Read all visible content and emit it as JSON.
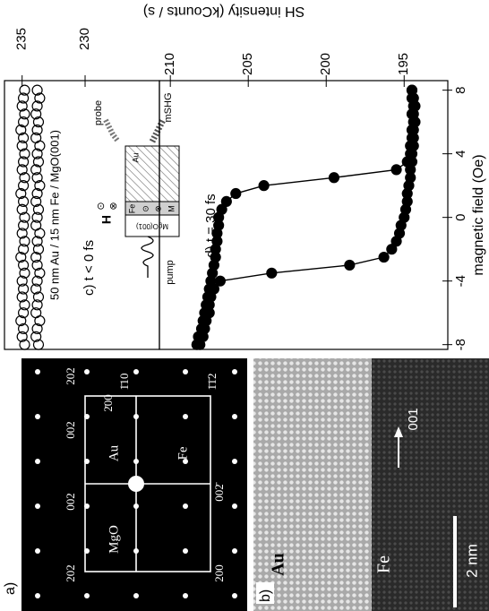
{
  "panel_a": {
    "label": "a)",
    "indices": [
      "202",
      "002",
      "002",
      "202",
      "2̄00",
      "1̄10",
      "1̄1̄2",
      "002̄",
      "200"
    ],
    "phases": [
      "Au",
      "Fe",
      "MgO"
    ]
  },
  "panel_b": {
    "label": "b)",
    "layers": [
      "Au",
      "Fe"
    ],
    "direction": "001",
    "scale_bar": "2 nm"
  },
  "inset": {
    "pump": "pump",
    "probe": "probe",
    "shg": "mSHG",
    "field": "H",
    "field_symbols": [
      "⊙",
      "⊗"
    ],
    "au": "Au",
    "fe_row": [
      "Fe",
      "⊙",
      "⊗",
      "M"
    ],
    "substrate": "MgO(001)"
  },
  "chart_data": [
    {
      "type": "scatter",
      "annotation": "c) t < 0 fs",
      "subtitle": "50 nm Au / 15 nm Fe / MgO(001)",
      "x": [
        -8,
        -7.5,
        -7,
        -6.5,
        -6,
        -5.5,
        -5,
        -4.5,
        -4,
        -3.5,
        -3,
        -2.5,
        -2,
        -1.5,
        -1,
        -0.5,
        0,
        0.5,
        1,
        1.5,
        2,
        2.5,
        3,
        3.5,
        4,
        4.5,
        5,
        5.5,
        6,
        6.5,
        7,
        7.5,
        8
      ],
      "series": [
        {
          "color": "#000000",
          "values": [
            234.8,
            235.0,
            234.9,
            235.1,
            234.9,
            234.8,
            235.0,
            234.9,
            235.0,
            234.8,
            234.9,
            235.1,
            234.9,
            234.8,
            235.0,
            234.9,
            234.8,
            235.0,
            234.9,
            235.1,
            234.9,
            234.8,
            235.0,
            234.9,
            234.8,
            235.0,
            234.9,
            235.1,
            234.9,
            234.8,
            235.0,
            234.9,
            234.8
          ]
        },
        {
          "color": "#000000",
          "values": [
            233.7,
            233.9,
            233.8,
            233.6,
            233.9,
            233.8,
            233.7,
            233.9,
            233.8,
            233.6,
            233.8,
            233.9,
            233.7,
            233.8,
            233.6,
            233.9,
            233.8,
            233.7,
            233.9,
            233.8,
            233.6,
            233.8,
            233.9,
            233.7,
            233.8,
            233.6,
            233.9,
            233.8,
            233.7,
            233.9,
            233.8,
            233.6,
            233.8
          ]
        }
      ],
      "xlim": [
        -8.3,
        8.6
      ],
      "ylim": [
        224.1,
        236.4
      ],
      "yticks": [
        230,
        235
      ],
      "marker": "open"
    },
    {
      "type": "line",
      "annotation": "d) t = 30 fs",
      "xlabel": "magnetic field (Oe)",
      "ylabel": "SH intensity (kCounts / s)",
      "x": [
        -8,
        -7.5,
        -7,
        -6.5,
        -6,
        -5.5,
        -5,
        -4.5,
        -4,
        -3.5,
        -3,
        -2.5,
        -2,
        -1.5,
        -1,
        -0.5,
        0,
        0.5,
        1,
        1.5,
        2,
        2.5,
        3,
        3.5,
        4,
        4.5,
        5,
        5.5,
        6,
        6.5,
        7,
        7.5,
        8
      ],
      "series": [
        {
          "color": "#000000",
          "values": [
            208.1,
            207.9,
            207.8,
            207.7,
            207.5,
            207.5,
            207.4,
            207.2,
            206.8,
            203.5,
            198.5,
            196.3,
            195.8,
            195.5,
            195.3,
            195.2,
            195.0,
            194.9,
            194.8,
            194.8,
            194.7,
            194.6,
            194.6,
            194.5,
            194.5,
            194.4,
            194.4,
            194.4,
            194.3,
            194.4,
            194.3,
            194.4,
            194.5
          ]
        },
        {
          "color": "#000000",
          "values": [
            208.3,
            208.2,
            208.0,
            207.9,
            207.8,
            207.7,
            207.6,
            207.5,
            207.4,
            207.3,
            207.2,
            207.1,
            207.1,
            207.0,
            207.0,
            206.9,
            206.9,
            206.7,
            206.4,
            205.8,
            204.0,
            199.5,
            195.5,
            194.8,
            194.6,
            194.6,
            194.5,
            194.5,
            194.4,
            194.5,
            194.4,
            194.5,
            194.5
          ]
        }
      ],
      "xlim": [
        -8.3,
        8.6
      ],
      "xticks": [
        -8,
        -4,
        0,
        4,
        8
      ],
      "ylim": [
        192.2,
        210.7
      ],
      "yticks": [
        195,
        200,
        205,
        210
      ],
      "marker": "filled"
    }
  ]
}
